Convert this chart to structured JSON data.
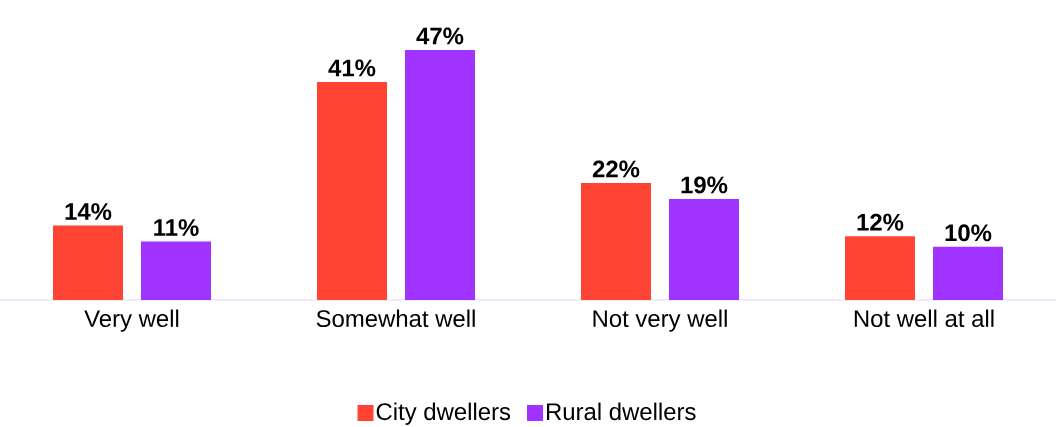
{
  "chart_data": {
    "type": "bar",
    "categories": [
      "Very well",
      "Somewhat well",
      "Not very well",
      "Not well at all"
    ],
    "series": [
      {
        "name": "City dwellers",
        "color": "#ff4433",
        "values": [
          14,
          41,
          22,
          12
        ],
        "value_labels": [
          "14%",
          "41%",
          "22%",
          "12%"
        ]
      },
      {
        "name": "Rural dwellers",
        "color": "#a033ff",
        "values": [
          11,
          47,
          19,
          10
        ],
        "value_labels": [
          "11%",
          "47%",
          "19%",
          "10%"
        ]
      }
    ],
    "legend": "bottom",
    "grid": false
  }
}
